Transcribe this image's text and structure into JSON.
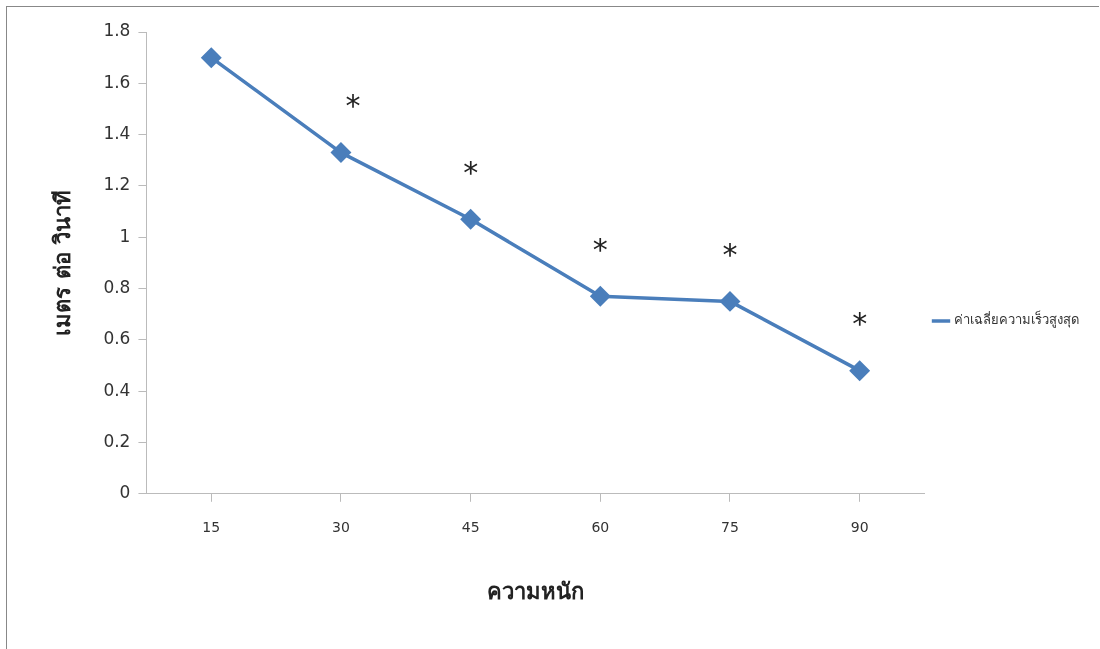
{
  "chart_data": {
    "type": "line",
    "xlabel": "ความหนัก",
    "ylabel": "เมตร ต่อ วินาที",
    "categories": [
      "15",
      "30",
      "45",
      "60",
      "75",
      "90"
    ],
    "series": [
      {
        "name": "ค่าเฉลี่ยความเร็วสูงสุด",
        "color": "#4a7ebb",
        "values": [
          1.7,
          1.33,
          1.07,
          0.77,
          0.75,
          0.48
        ]
      }
    ],
    "ylim": [
      0,
      1.8
    ],
    "yticks": [
      0,
      {
        "value": 0.2,
        "label": "0.2"
      },
      {
        "value": 0.4,
        "label": "0.4"
      },
      {
        "value": 0.6,
        "label": "0.6"
      },
      {
        "value": 0.8,
        "label": "0.8"
      },
      1,
      {
        "value": 1.2,
        "label": "1.2"
      },
      {
        "value": 1.4,
        "label": "1.4"
      },
      {
        "value": 1.6,
        "label": "1.6"
      },
      {
        "value": 1.8,
        "label": "1.8"
      }
    ],
    "annotations": [
      {
        "text": "*",
        "x": "30",
        "y": 1.33
      },
      {
        "text": "*",
        "x": "45",
        "y": 1.07
      },
      {
        "text": "*",
        "x": "60",
        "y": 0.77
      },
      {
        "text": "*",
        "x": "75",
        "y": 0.75
      },
      {
        "text": "*",
        "x": "90",
        "y": 0.48
      }
    ],
    "grid": false,
    "legend": "right",
    "marker": "diamond",
    "line_style": "solid"
  }
}
